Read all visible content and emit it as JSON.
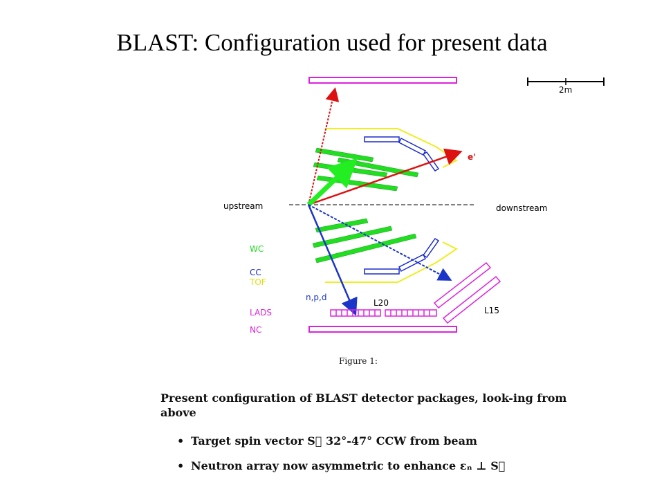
{
  "title": "BLAST:  Configuration used for present data",
  "diagram": {
    "scale_label": "2m",
    "labels": {
      "upstream": "upstream",
      "downstream": "downstream",
      "e_prime": "e'",
      "wc": "WC",
      "cc": "CC",
      "tof": "TOF",
      "lads": "LADS",
      "nc": "NC",
      "npd": "n,p,d",
      "l20": "L20",
      "l15": "L15"
    },
    "colors": {
      "wc": "#22dd22",
      "cc": "#1a2bcc",
      "tof": "#eeee22",
      "lads": "#dd22dd",
      "nc": "#dd22dd",
      "electron": "#dd1111",
      "hadron": "#1a35c8",
      "spin": "#22ee22"
    }
  },
  "caption": "Figure 1:",
  "description": "Present configuration of BLAST detector packages, look-ing from above",
  "bullets": [
    "Target spin vector S⃗ 32°-47° CCW from beam",
    "Neutron array now asymmetric to enhance εₙ ⊥ S⃗"
  ]
}
